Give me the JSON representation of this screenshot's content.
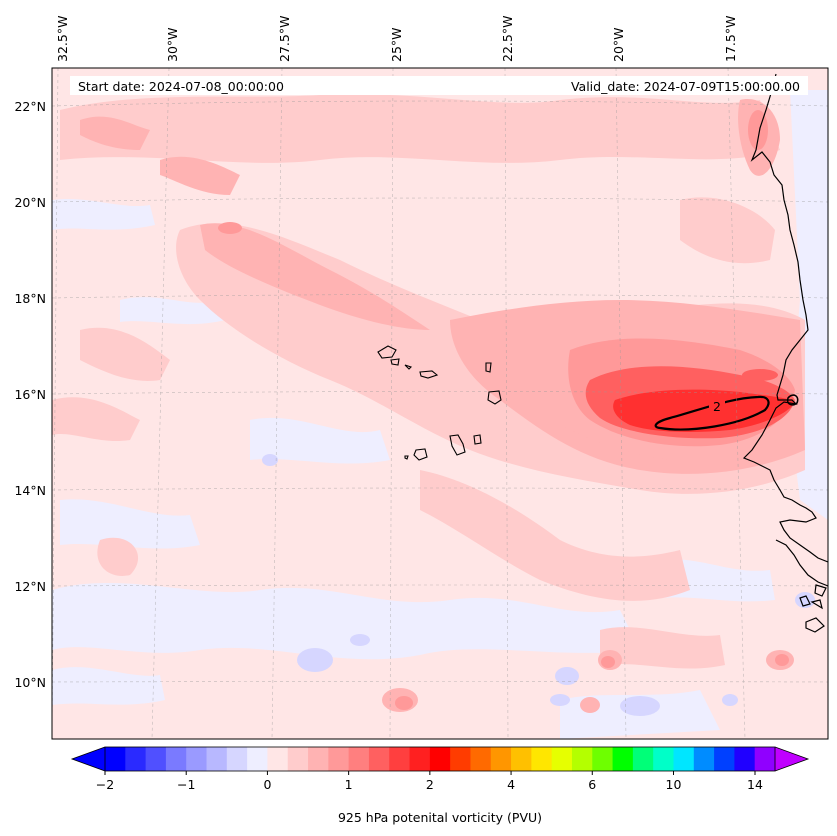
{
  "header": {
    "start_date": "Start date: 2024-07-08_00:00:00",
    "valid_date": "Valid_date: 2024-07-09T15:00:00.00"
  },
  "longitude_labels": [
    "32.5°W",
    "30°W",
    "27.5°W",
    "25°W",
    "22.5°W",
    "20°W",
    "17.5°W"
  ],
  "latitude_labels": [
    "22°N",
    "20°N",
    "18°N",
    "16°N",
    "14°N",
    "12°N",
    "10°N"
  ],
  "contour_label": "2",
  "colorbar": {
    "label": "925 hPa potenital vorticity (PVU)",
    "tick_labels": [
      "−2",
      "−1",
      "0",
      "1",
      "2",
      "4",
      "6",
      "10",
      "14"
    ],
    "colors": [
      "#0000ff",
      "#2a2aff",
      "#5050ff",
      "#7a7aff",
      "#9a9aff",
      "#b8b8ff",
      "#d6d6ff",
      "#eeeeff",
      "#ffe6e6",
      "#ffcccc",
      "#ffb3b3",
      "#ff9999",
      "#ff7f7f",
      "#ff6060",
      "#ff3f3f",
      "#ff2020",
      "#ff0000",
      "#ff3c00",
      "#ff6a00",
      "#ff9600",
      "#ffc000",
      "#ffe600",
      "#e6ff00",
      "#b4ff00",
      "#6eff00",
      "#00ff00",
      "#00ff78",
      "#00ffc8",
      "#00e6ff",
      "#008cff",
      "#0040ff",
      "#2000ff",
      "#9000ff"
    ],
    "min_color": "#0000ff",
    "max_color": "#c000ff"
  },
  "colors": {
    "background_field": "#ffe6e6",
    "light_pink": "#ffcccc",
    "pink": "#ffb3b3",
    "strong_red": "#ff3030",
    "light_blue": "#d6d6ff",
    "pale_blue": "#eeeeff"
  }
}
